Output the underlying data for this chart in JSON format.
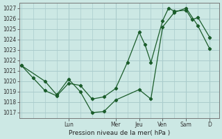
{
  "xlabel": "Pression niveau de la mer( hPa )",
  "bg_color": "#cce8e4",
  "grid_color": "#aacccc",
  "line_color": "#1a5c2a",
  "ylim": [
    1016.5,
    1027.5
  ],
  "day_labels": [
    "Lun",
    "Mer",
    "Jeu",
    "Ven",
    "Sam",
    "D"
  ],
  "day_positions": [
    2.0,
    4.0,
    5.0,
    6.0,
    7.0,
    8.0
  ],
  "xlim": [
    -0.1,
    8.4
  ],
  "series1_x": [
    0.0,
    0.5,
    1.0,
    1.5,
    2.0,
    2.5,
    3.0,
    3.5,
    4.0,
    4.5,
    5.0,
    5.25,
    5.5,
    6.0,
    6.25,
    6.5,
    7.0,
    7.25,
    7.5,
    8.0
  ],
  "series1_y": [
    1021.5,
    1020.3,
    1019.1,
    1018.6,
    1019.8,
    1019.6,
    1018.3,
    1018.5,
    1019.3,
    1021.8,
    1024.7,
    1023.5,
    1021.8,
    1025.8,
    1027.0,
    1026.7,
    1026.8,
    1025.9,
    1026.1,
    1024.2
  ],
  "series2_x": [
    0.0,
    1.0,
    1.5,
    2.0,
    2.5,
    3.0,
    3.5,
    4.0,
    5.0,
    5.5,
    6.0,
    6.5,
    7.0,
    7.5,
    8.0
  ],
  "series2_y": [
    1021.5,
    1020.0,
    1018.7,
    1020.2,
    1019.0,
    1017.0,
    1017.1,
    1018.2,
    1019.2,
    1018.3,
    1025.2,
    1026.6,
    1027.0,
    1025.3,
    1023.1
  ],
  "yticks": [
    1017,
    1018,
    1019,
    1020,
    1021,
    1022,
    1023,
    1024,
    1025,
    1026,
    1027
  ],
  "xlabel_fontsize": 6.5,
  "tick_labelsize": 5.5
}
